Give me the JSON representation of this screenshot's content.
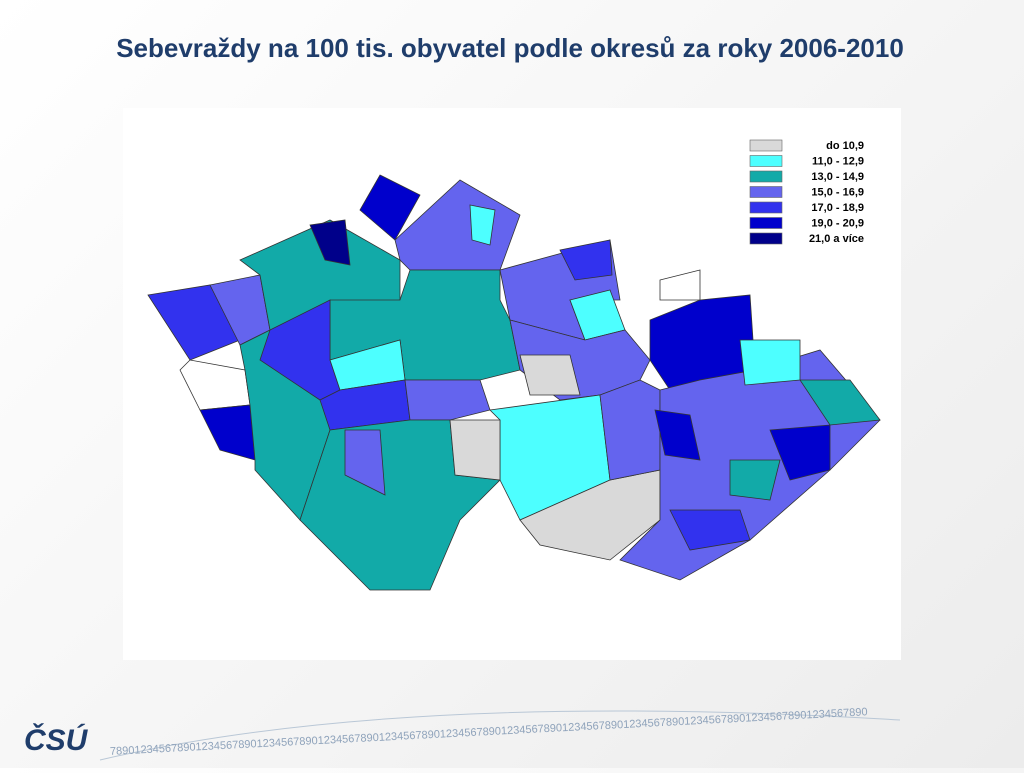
{
  "title": "Sebevraždy na 100 tis. obyvatel podle okresů za roky 2006-2010",
  "legend": [
    {
      "label": "do  10,9",
      "color": "#d9d9d9"
    },
    {
      "label": "11,0 -  12,9",
      "color": "#4dffff"
    },
    {
      "label": "13,0 -  14,9",
      "color": "#12aaa8"
    },
    {
      "label": "15,0 -  16,9",
      "color": "#6464ee"
    },
    {
      "label": "17,0 -  18,9",
      "color": "#3232ee"
    },
    {
      "label": "19,0 -  20,9",
      "color": "#0000cc"
    },
    {
      "label": "21,0 a více",
      "color": "#00008a"
    }
  ],
  "logo": "ČSÚ",
  "footer_digits": "7890123456789012345678901234567890123456789012345678901234567890123456789012345678901234567890123456789012345678901234567890"
}
